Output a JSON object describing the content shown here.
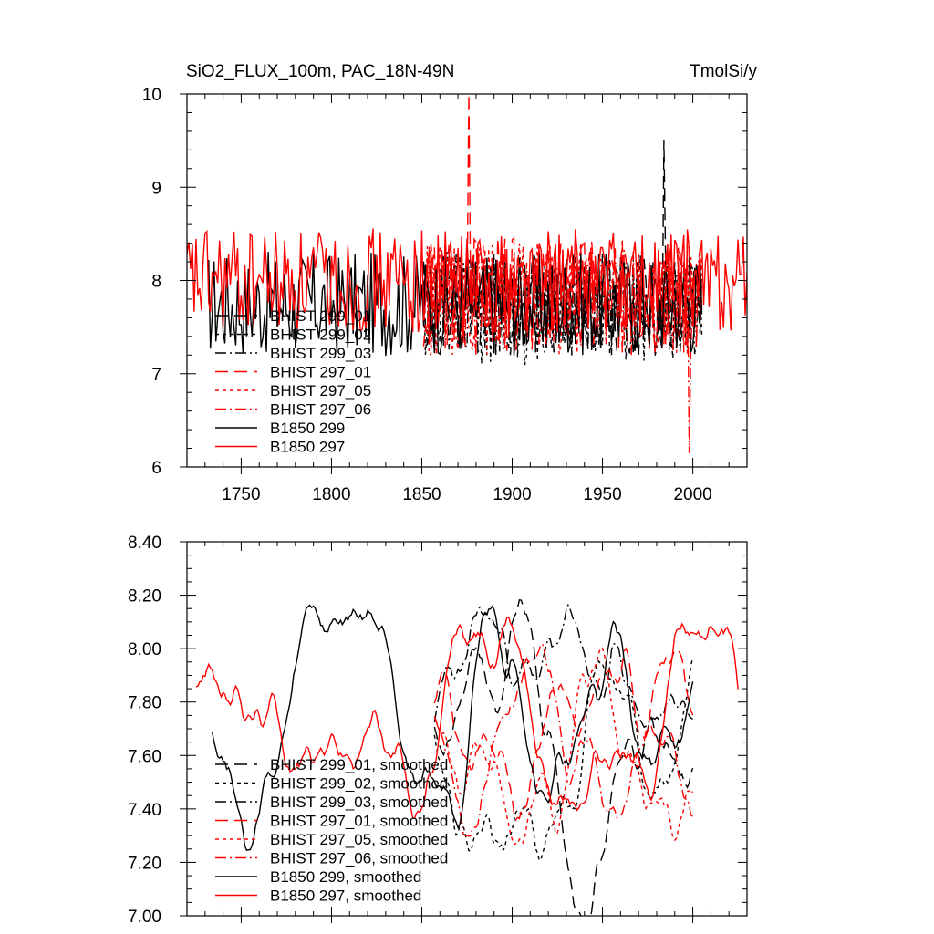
{
  "chart_data": [
    {
      "type": "line",
      "title": "SiO2_FLUX_100m, PAC_18N-49N",
      "units": "TmolSi/y",
      "xlim": [
        1720,
        2030
      ],
      "ylim": [
        6,
        10
      ],
      "xticks": [
        1750,
        1800,
        1850,
        1900,
        1950,
        2000
      ],
      "xtick_labels": [
        "1750",
        "1800",
        "1850",
        "1900",
        "1950",
        "2000"
      ],
      "yticks": [
        6,
        7,
        8,
        9,
        10
      ],
      "ytick_labels": [
        "6",
        "7",
        "8",
        "9",
        "10"
      ],
      "legend_position": "bottom-left",
      "series": [
        {
          "name": "BHIST 299_01",
          "color": "#000000",
          "dash": "long-dash",
          "start": 1851,
          "end": 2005,
          "mean": 7.75,
          "amp": 0.35,
          "seed": 11
        },
        {
          "name": "BHIST 299_02",
          "color": "#000000",
          "dash": "short-dash",
          "start": 1851,
          "end": 2005,
          "mean": 7.7,
          "amp": 0.38,
          "seed": 12
        },
        {
          "name": "BHIST 299_03",
          "color": "#000000",
          "dash": "dash-dot",
          "start": 1851,
          "end": 2005,
          "mean": 7.75,
          "amp": 0.35,
          "seed": 13
        },
        {
          "name": "BHIST 297_01",
          "color": "#ff0000",
          "dash": "long-dash",
          "start": 1851,
          "end": 2005,
          "mean": 7.85,
          "amp": 0.38,
          "seed": 14
        },
        {
          "name": "BHIST 297_05",
          "color": "#ff0000",
          "dash": "short-dash",
          "start": 1851,
          "end": 2005,
          "mean": 7.8,
          "amp": 0.38,
          "seed": 15
        },
        {
          "name": "BHIST 297_06",
          "color": "#ff0000",
          "dash": "dash-dot",
          "start": 1851,
          "end": 2005,
          "mean": 7.8,
          "amp": 0.38,
          "seed": 16
        },
        {
          "name": "B1850 299",
          "color": "#000000",
          "dash": "solid",
          "start": 1732,
          "end": 2005,
          "mean": 7.75,
          "amp": 0.35,
          "seed": 17
        },
        {
          "name": "B1850 297",
          "color": "#ff0000",
          "dash": "solid",
          "start": 1720,
          "end": 2030,
          "mean": 8.0,
          "amp": 0.35,
          "seed": 18
        }
      ],
      "annotations": [
        {
          "series": "BHIST 297_01",
          "x": 1876,
          "y": 10.0
        },
        {
          "series": "BHIST 299_01",
          "x": 1984,
          "y": 9.5
        },
        {
          "series": "BHIST 297_06",
          "x": 1998,
          "y": 6.15
        }
      ]
    },
    {
      "type": "line",
      "title": "",
      "xlim": [
        1720,
        2030
      ],
      "ylim": [
        7.0,
        8.4
      ],
      "xticks": [
        1750,
        1800,
        1850,
        1900,
        1950,
        2000
      ],
      "yticks": [
        7.0,
        7.2,
        7.4,
        7.6,
        7.8,
        8.0,
        8.2,
        8.4
      ],
      "ytick_labels": [
        "7.00",
        "7.20",
        "7.40",
        "7.60",
        "7.80",
        "8.00",
        "8.20",
        "8.40"
      ],
      "legend_position": "bottom-left",
      "series": [
        {
          "name": "BHIST 299_01, smoothed",
          "color": "#000000",
          "dash": "long-dash",
          "start": 1857,
          "end": 2000,
          "mean": 7.72,
          "amp": 0.22,
          "seed": 21
        },
        {
          "name": "BHIST 299_02, smoothed",
          "color": "#000000",
          "dash": "short-dash",
          "start": 1857,
          "end": 2000,
          "mean": 7.7,
          "amp": 0.2,
          "seed": 22
        },
        {
          "name": "BHIST 299_03, smoothed",
          "color": "#000000",
          "dash": "dash-dot",
          "start": 1857,
          "end": 2000,
          "mean": 7.7,
          "amp": 0.2,
          "seed": 23
        },
        {
          "name": "BHIST 297_01, smoothed",
          "color": "#ff0000",
          "dash": "long-dash",
          "start": 1857,
          "end": 2000,
          "mean": 7.78,
          "amp": 0.24,
          "seed": 24
        },
        {
          "name": "BHIST 297_05, smoothed",
          "color": "#ff0000",
          "dash": "short-dash",
          "start": 1857,
          "end": 2000,
          "mean": 7.72,
          "amp": 0.22,
          "seed": 25
        },
        {
          "name": "BHIST 297_06, smoothed",
          "color": "#ff0000",
          "dash": "dash-dot",
          "start": 1857,
          "end": 2000,
          "mean": 7.75,
          "amp": 0.22,
          "seed": 26
        },
        {
          "name": "B1850 299, smoothed",
          "color": "#000000",
          "dash": "solid",
          "start": 1734,
          "end": 2000,
          "mean": 7.7,
          "amp": 0.22,
          "seed": 27
        },
        {
          "name": "B1850 297, smoothed",
          "color": "#ff0000",
          "dash": "solid",
          "start": 1725,
          "end": 2025,
          "mean": 7.88,
          "amp": 0.22,
          "seed": 28
        }
      ]
    }
  ]
}
